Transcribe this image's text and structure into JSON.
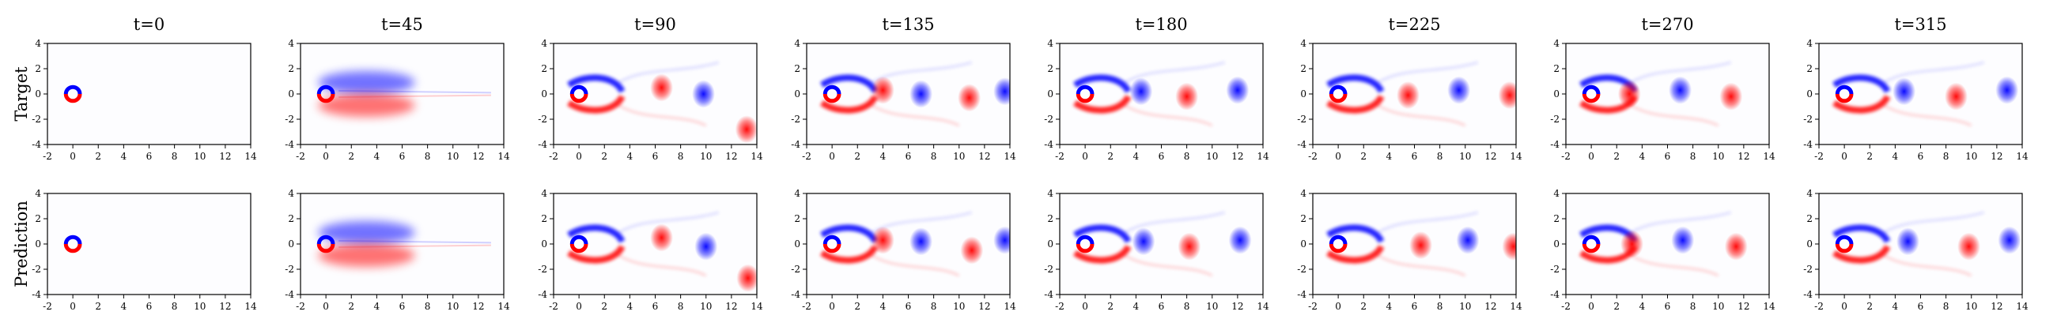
{
  "figure": {
    "row_labels": [
      "Target",
      "Prediction"
    ],
    "column_titles": [
      "t=0",
      "t=45",
      "t=90",
      "t=135",
      "t=180",
      "t=225",
      "t=270",
      "t=315"
    ]
  },
  "chart_data": {
    "type": "heatmap",
    "description_kind": "vorticity field, flow past cylinder",
    "colormap": {
      "positive": "#ff0000",
      "negative": "#0000ff",
      "zero": "#ffffff"
    },
    "xlim": [
      -2,
      14
    ],
    "ylim": [
      -4,
      4
    ],
    "xticks": [
      -2,
      0,
      2,
      4,
      6,
      8,
      10,
      12,
      14
    ],
    "yticks": [
      -4,
      -2,
      0,
      2,
      4
    ],
    "rows": [
      "Target",
      "Prediction"
    ],
    "times": [
      0,
      45,
      90,
      135,
      180,
      225,
      270,
      315
    ],
    "panels": [
      [
        {
          "t": 0,
          "blobs": [],
          "wake": 0
        },
        {
          "t": 45,
          "blobs": [],
          "wake": 1
        },
        {
          "t": 90,
          "blobs": [
            {
              "x": 6.5,
              "y": 0.5,
              "s": 1
            },
            {
              "x": 9.8,
              "y": 0,
              "s": -1
            },
            {
              "x": 13.2,
              "y": -2.8,
              "s": 1
            }
          ],
          "wake": 2
        },
        {
          "t": 135,
          "blobs": [
            {
              "x": 4,
              "y": 0.3,
              "s": 1
            },
            {
              "x": 7,
              "y": 0,
              "s": -1
            },
            {
              "x": 10.8,
              "y": -0.3,
              "s": 1
            },
            {
              "x": 13.6,
              "y": 0.2,
              "s": -1
            }
          ],
          "wake": 2
        },
        {
          "t": 180,
          "blobs": [
            {
              "x": 4.4,
              "y": 0.2,
              "s": -1
            },
            {
              "x": 8,
              "y": -0.2,
              "s": 1
            },
            {
              "x": 12,
              "y": 0.3,
              "s": -1
            }
          ],
          "wake": 2
        },
        {
          "t": 225,
          "blobs": [
            {
              "x": 5.5,
              "y": -0.1,
              "s": 1
            },
            {
              "x": 9.5,
              "y": 0.3,
              "s": -1
            },
            {
              "x": 13.5,
              "y": -0.1,
              "s": 1
            }
          ],
          "wake": 2
        },
        {
          "t": 270,
          "blobs": [
            {
              "x": 3,
              "y": 0,
              "s": 1
            },
            {
              "x": 7,
              "y": 0.3,
              "s": -1
            },
            {
              "x": 11,
              "y": -0.2,
              "s": 1
            }
          ],
          "wake": 2
        },
        {
          "t": 315,
          "blobs": [
            {
              "x": 4.7,
              "y": 0.2,
              "s": -1
            },
            {
              "x": 8.8,
              "y": -0.2,
              "s": 1
            },
            {
              "x": 12.8,
              "y": 0.3,
              "s": -1
            }
          ],
          "wake": 2
        }
      ],
      [
        {
          "t": 0,
          "blobs": [],
          "wake": 0
        },
        {
          "t": 45,
          "blobs": [],
          "wake": 1
        },
        {
          "t": 90,
          "blobs": [
            {
              "x": 6.5,
              "y": 0.5,
              "s": 1
            },
            {
              "x": 10,
              "y": -0.2,
              "s": -1
            },
            {
              "x": 13.3,
              "y": -2.7,
              "s": 1
            }
          ],
          "wake": 2
        },
        {
          "t": 135,
          "blobs": [
            {
              "x": 4,
              "y": 0.3,
              "s": 1
            },
            {
              "x": 7,
              "y": 0.2,
              "s": -1
            },
            {
              "x": 11,
              "y": -0.5,
              "s": 1
            },
            {
              "x": 13.6,
              "y": 0.3,
              "s": -1
            }
          ],
          "wake": 2
        },
        {
          "t": 180,
          "blobs": [
            {
              "x": 4.6,
              "y": 0.2,
              "s": -1
            },
            {
              "x": 8.2,
              "y": -0.2,
              "s": 1
            },
            {
              "x": 12.2,
              "y": 0.3,
              "s": -1
            }
          ],
          "wake": 2
        },
        {
          "t": 225,
          "blobs": [
            {
              "x": 6.5,
              "y": -0.1,
              "s": 1
            },
            {
              "x": 10.2,
              "y": 0.3,
              "s": -1
            },
            {
              "x": 13.8,
              "y": -0.2,
              "s": 1
            }
          ],
          "wake": 2
        },
        {
          "t": 270,
          "blobs": [
            {
              "x": 3.2,
              "y": 0,
              "s": 1
            },
            {
              "x": 7.2,
              "y": 0.3,
              "s": -1
            },
            {
              "x": 11.4,
              "y": -0.2,
              "s": 1
            }
          ],
          "wake": 2
        },
        {
          "t": 315,
          "blobs": [
            {
              "x": 5,
              "y": 0.2,
              "s": -1
            },
            {
              "x": 9.8,
              "y": -0.2,
              "s": 1
            },
            {
              "x": 13,
              "y": 0.3,
              "s": -1
            }
          ],
          "wake": 2
        }
      ]
    ]
  }
}
